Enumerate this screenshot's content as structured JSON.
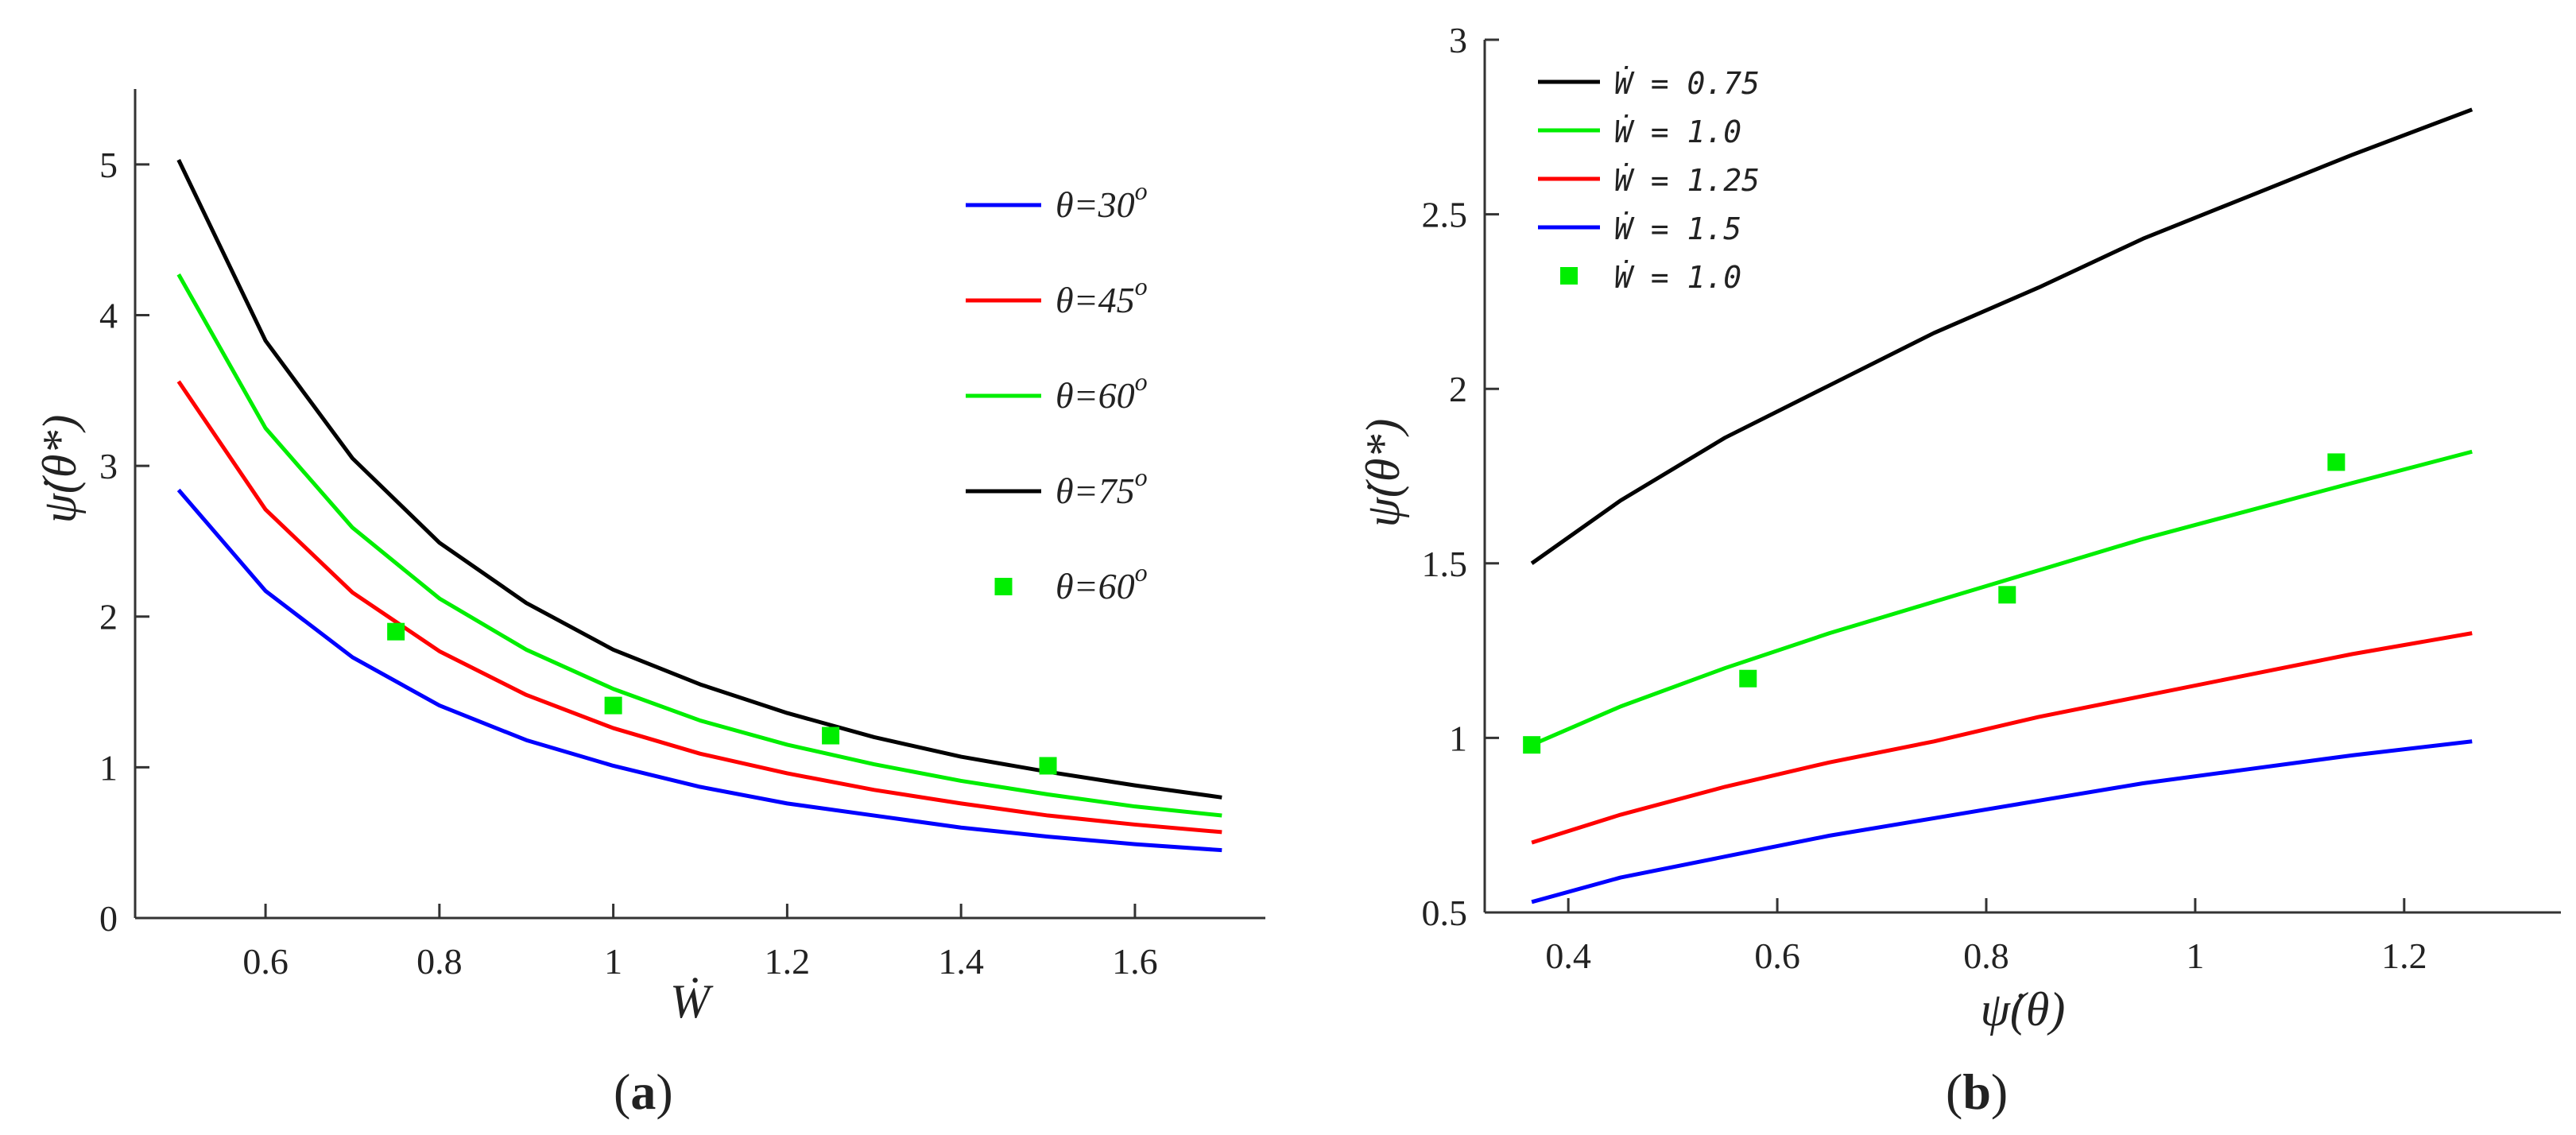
{
  "chart_data": [
    {
      "type": "line",
      "panel": "(a)",
      "caption_letter": "a",
      "xlabel": "Ẇ",
      "ylabel": "ψ̇(θ*)",
      "xlim": [
        0.45,
        1.75
      ],
      "ylim": [
        0,
        5.5
      ],
      "xticks": [
        0.6,
        0.8,
        1,
        1.2,
        1.4,
        1.6
      ],
      "xtick_labels": [
        "0.6",
        "0.8",
        "1",
        "1.2",
        "1.4",
        "1.6"
      ],
      "yticks": [
        0,
        1,
        2,
        3,
        4,
        5
      ],
      "ytick_labels": [
        "0",
        "1",
        "2",
        "3",
        "4",
        "5"
      ],
      "legend_position": "top-right",
      "series": [
        {
          "name": "θ=30",
          "sup": "o",
          "color": "#0000ff",
          "kind": "line",
          "x": [
            0.5,
            0.6,
            0.7,
            0.8,
            0.9,
            1.0,
            1.1,
            1.2,
            1.3,
            1.4,
            1.5,
            1.6,
            1.7
          ],
          "y": [
            2.84,
            2.17,
            1.73,
            1.41,
            1.18,
            1.01,
            0.87,
            0.76,
            0.68,
            0.6,
            0.54,
            0.49,
            0.45
          ]
        },
        {
          "name": "θ=45",
          "sup": "o",
          "color": "#ff0000",
          "kind": "line",
          "x": [
            0.5,
            0.6,
            0.7,
            0.8,
            0.9,
            1.0,
            1.1,
            1.2,
            1.3,
            1.4,
            1.5,
            1.6,
            1.7
          ],
          "y": [
            3.56,
            2.71,
            2.16,
            1.77,
            1.48,
            1.26,
            1.09,
            0.96,
            0.85,
            0.76,
            0.68,
            0.62,
            0.57
          ]
        },
        {
          "name": "θ=60",
          "sup": "o",
          "color": "#00ee00",
          "kind": "line",
          "x": [
            0.5,
            0.6,
            0.7,
            0.8,
            0.9,
            1.0,
            1.1,
            1.2,
            1.3,
            1.4,
            1.5,
            1.6,
            1.7
          ],
          "y": [
            4.27,
            3.25,
            2.59,
            2.12,
            1.78,
            1.52,
            1.31,
            1.15,
            1.02,
            0.91,
            0.82,
            0.74,
            0.68
          ]
        },
        {
          "name": "θ=75",
          "sup": "o",
          "color": "#000000",
          "kind": "line",
          "x": [
            0.5,
            0.6,
            0.7,
            0.8,
            0.9,
            1.0,
            1.1,
            1.2,
            1.3,
            1.4,
            1.5,
            1.6,
            1.7
          ],
          "y": [
            5.03,
            3.83,
            3.05,
            2.49,
            2.09,
            1.78,
            1.55,
            1.36,
            1.2,
            1.07,
            0.97,
            0.88,
            0.8
          ]
        },
        {
          "name": "θ=60",
          "sup": "o",
          "color": "#00ee00",
          "kind": "marker",
          "x": [
            0.75,
            1.0,
            1.25,
            1.5
          ],
          "y": [
            1.9,
            1.41,
            1.21,
            1.01
          ]
        }
      ]
    },
    {
      "type": "line",
      "panel": "(b)",
      "caption_letter": "b",
      "xlabel": "ψ̇(θ)",
      "ylabel": "ψ̇(θ*)",
      "xlim": [
        0.32,
        1.35
      ],
      "ylim": [
        0.5,
        3
      ],
      "xticks": [
        0.4,
        0.6,
        0.8,
        1.0,
        1.2
      ],
      "xtick_labels": [
        "0.4",
        "0.6",
        "0.8",
        "1",
        "1.2"
      ],
      "yticks": [
        0.5,
        1,
        1.5,
        2,
        2.5,
        3
      ],
      "ytick_labels": [
        "0.5",
        "1",
        "1.5",
        "2",
        "2.5",
        "3"
      ],
      "legend_position": "top-left",
      "series": [
        {
          "name": "Ẇ = 0.75",
          "color": "#000000",
          "kind": "line",
          "x": [
            0.365,
            0.45,
            0.55,
            0.65,
            0.75,
            0.85,
            0.95,
            1.05,
            1.15,
            1.265
          ],
          "y": [
            1.5,
            1.68,
            1.86,
            2.01,
            2.16,
            2.29,
            2.43,
            2.55,
            2.67,
            2.8
          ]
        },
        {
          "name": "Ẇ = 1.0",
          "color": "#00ee00",
          "kind": "line",
          "x": [
            0.365,
            0.45,
            0.55,
            0.65,
            0.75,
            0.85,
            0.95,
            1.05,
            1.15,
            1.265
          ],
          "y": [
            0.98,
            1.09,
            1.2,
            1.3,
            1.39,
            1.48,
            1.57,
            1.65,
            1.73,
            1.82
          ]
        },
        {
          "name": "Ẇ = 1.25",
          "color": "#ff0000",
          "kind": "line",
          "x": [
            0.365,
            0.45,
            0.55,
            0.65,
            0.75,
            0.85,
            0.95,
            1.05,
            1.15,
            1.265
          ],
          "y": [
            0.7,
            0.78,
            0.86,
            0.93,
            0.99,
            1.06,
            1.12,
            1.18,
            1.24,
            1.3
          ]
        },
        {
          "name": "Ẇ = 1.5",
          "color": "#0000ff",
          "kind": "line",
          "x": [
            0.365,
            0.45,
            0.55,
            0.65,
            0.75,
            0.85,
            0.95,
            1.05,
            1.15,
            1.265
          ],
          "y": [
            0.53,
            0.6,
            0.66,
            0.72,
            0.77,
            0.82,
            0.87,
            0.91,
            0.95,
            0.99
          ]
        },
        {
          "name": "Ẇ = 1.0",
          "color": "#00ee00",
          "kind": "marker",
          "x": [
            0.365,
            0.572,
            0.82,
            1.135
          ],
          "y": [
            0.98,
            1.17,
            1.41,
            1.79
          ]
        }
      ]
    }
  ]
}
